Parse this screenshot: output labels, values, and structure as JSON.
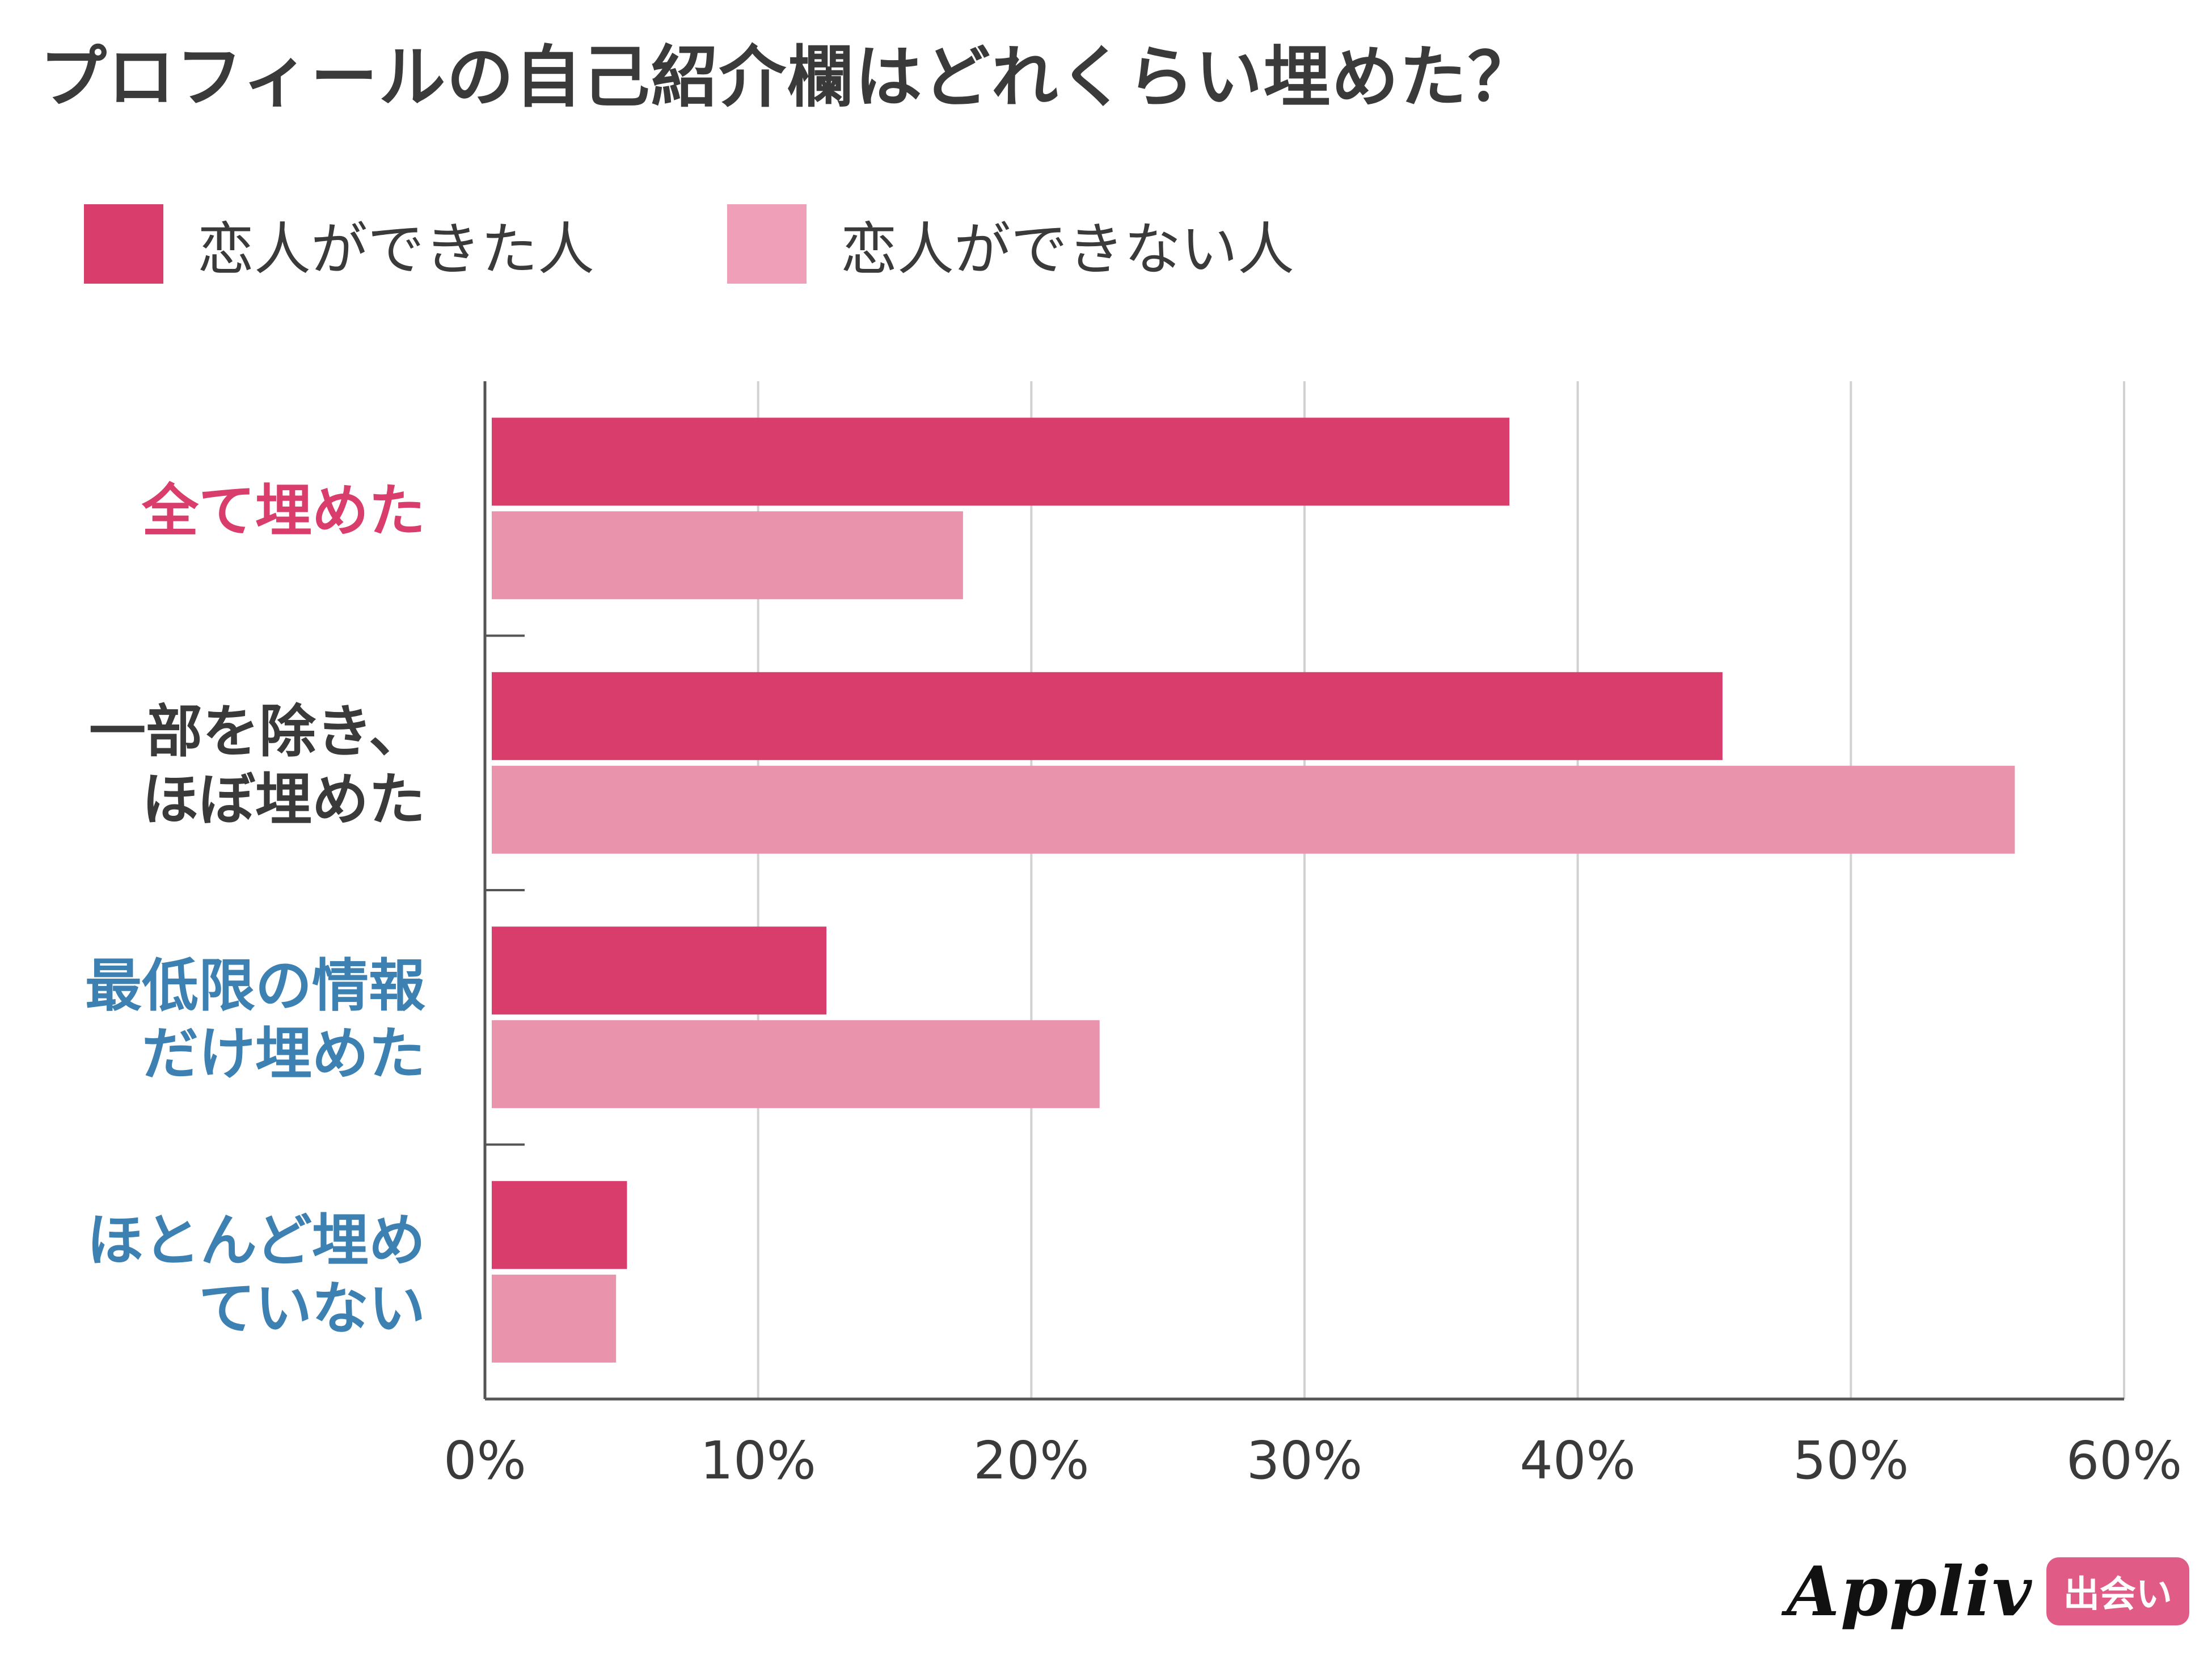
{
  "title": "プロフィールの自己紹介欄はどれくらい埋めた？",
  "legend": [
    {
      "label": "恋人ができた人",
      "color": "#d83d6c"
    },
    {
      "label": "恋人ができない人",
      "color": "#ef9fb8"
    }
  ],
  "brand": {
    "name": "Appliv",
    "badge": "出会い"
  },
  "chart_data": {
    "type": "bar",
    "orientation": "horizontal",
    "title": "プロフィールの自己紹介欄はどれくらい埋めた？",
    "categories": [
      {
        "lines": [
          "全て埋めた"
        ],
        "color": "#d83d6c"
      },
      {
        "lines": [
          "一部を除き、",
          "ほぼ埋めた"
        ],
        "color": "#3a3a3a"
      },
      {
        "lines": [
          "最低限の情報",
          "だけ埋めた"
        ],
        "color": "#3d80b2"
      },
      {
        "lines": [
          "ほとんど埋め",
          "ていない"
        ],
        "color": "#3d80b2"
      }
    ],
    "series": [
      {
        "name": "恋人ができた人",
        "color": "#d83d6c",
        "values": [
          37.5,
          45.3,
          12.5,
          5.2
        ]
      },
      {
        "name": "恋人ができない人",
        "color": "#ea93ad",
        "values": [
          17.5,
          56.0,
          22.5,
          4.8
        ]
      }
    ],
    "xlim": [
      0,
      60
    ],
    "xticks": [
      0,
      10,
      20,
      30,
      40,
      50,
      60
    ],
    "tick_suffix": "%",
    "grid": true,
    "legend_position": "top-left"
  }
}
